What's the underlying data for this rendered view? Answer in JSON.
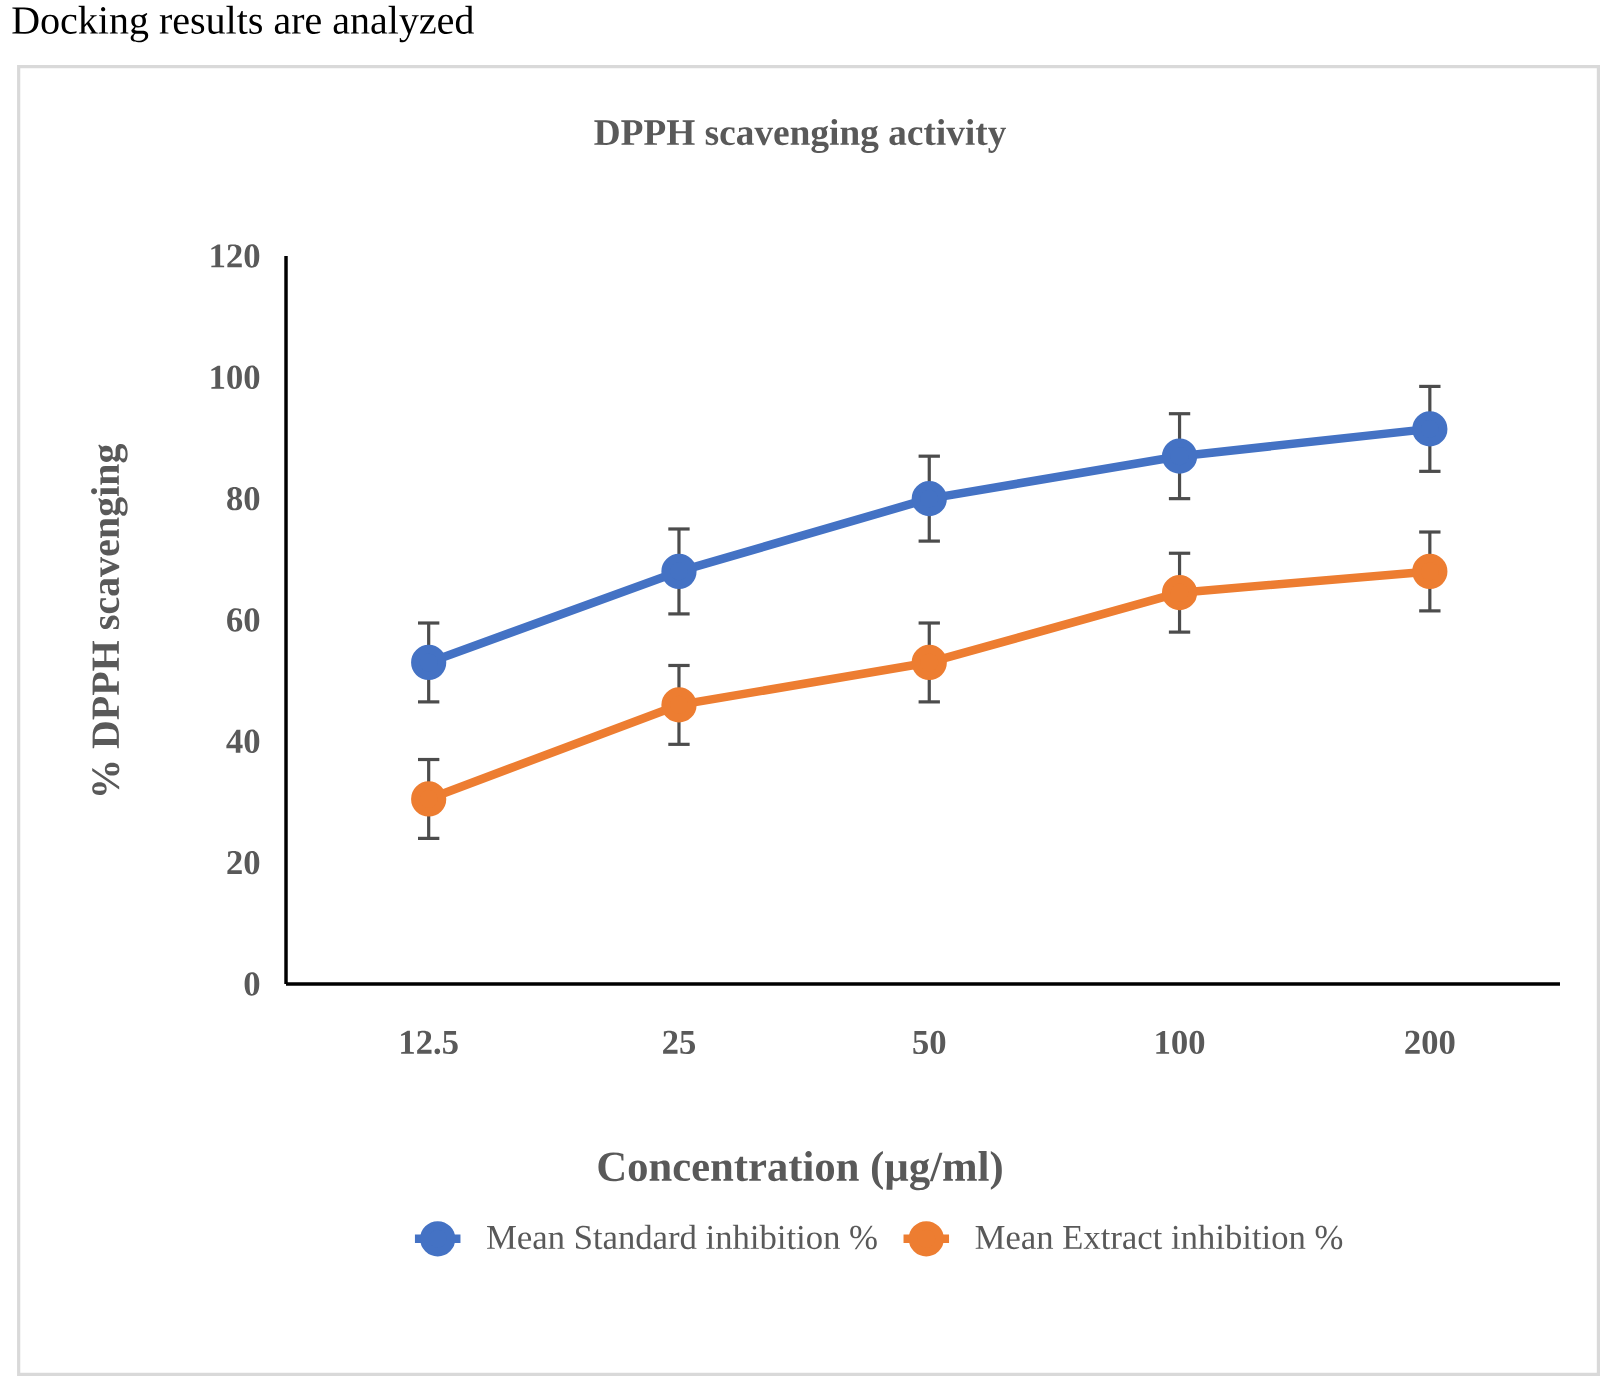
{
  "chart_data": {
    "type": "line",
    "title": "DPPH scavenging activity",
    "xlabel": "Concentration (µg/ml)",
    "ylabel": "% DPPH scavenging",
    "annotations": [
      "Docking results are analyzed"
    ],
    "categories": [
      "12.5",
      "25",
      "50",
      "100",
      "200"
    ],
    "series": [
      {
        "name": "Mean Standard inhibition %",
        "color": "#4472c4",
        "values": [
          53,
          68,
          80,
          87,
          91.5
        ],
        "errors": [
          6.5,
          7,
          7,
          7,
          7
        ]
      },
      {
        "name": "Mean Extract inhibition %",
        "color": "#ed7d31",
        "values": [
          30.5,
          46,
          53,
          64.5,
          68
        ],
        "errors": [
          6.5,
          6.5,
          6.5,
          6.5,
          6.5
        ]
      }
    ],
    "ylim": [
      0,
      120
    ],
    "yticks": [
      0,
      20,
      40,
      60,
      80,
      100,
      120
    ],
    "grid": false,
    "legend": "bottom",
    "marker": "circle",
    "line_style": "solid"
  }
}
